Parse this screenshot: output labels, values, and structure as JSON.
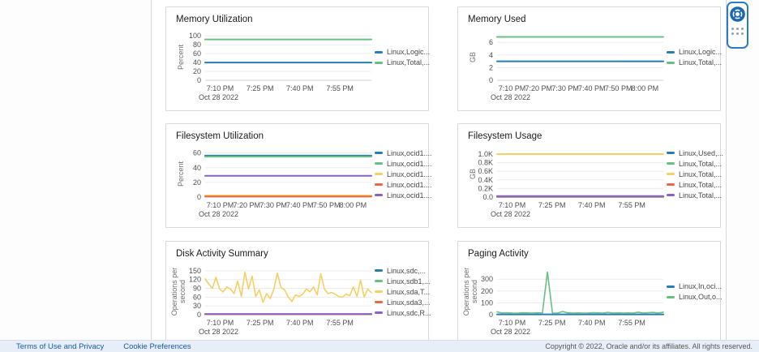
{
  "footer": {
    "terms_label": "Terms of Use and Privacy",
    "cookie_label": "Cookie Preferences",
    "copyright": "Copyright © 2022, Oracle and/or its affiliates. All rights reserved."
  },
  "help_widget": {
    "icons": {
      "help": "life-ring",
      "launcher": "dots-grid"
    }
  },
  "palette": {
    "blue": "#267db3",
    "green": "#68c182",
    "yellow": "#f6cf65",
    "red": "#ed6647",
    "purple": "#8561c8"
  },
  "charts": [
    {
      "title": "Memory Utilization",
      "ylabel": [
        "Percent"
      ],
      "ymax": 104,
      "yticks": [
        {
          "v": 0,
          "label": "0"
        },
        {
          "v": 20,
          "label": "20"
        },
        {
          "v": 40,
          "label": "40"
        },
        {
          "v": 60,
          "label": "60"
        },
        {
          "v": 80,
          "label": "80"
        },
        {
          "v": 100,
          "label": "100"
        }
      ],
      "xticks": [
        {
          "f": 0.09,
          "label": "7:10 PM"
        },
        {
          "f": 0.33,
          "label": "7:25 PM"
        },
        {
          "f": 0.57,
          "label": "7:40 PM"
        },
        {
          "f": 0.81,
          "label": "7:55 PM"
        }
      ],
      "xdate": "Oct 28 2022",
      "series": [
        {
          "label": "Linux,Logic...",
          "color": "#267db3",
          "value": 40
        },
        {
          "label": "Linux,Total,...",
          "color": "#68c182",
          "value": 92
        }
      ]
    },
    {
      "title": "Memory Used",
      "ylabel": [
        "GB"
      ],
      "ymax": 7.3,
      "yticks": [
        {
          "v": 0,
          "label": "0"
        },
        {
          "v": 2,
          "label": "2"
        },
        {
          "v": 4,
          "label": "4"
        },
        {
          "v": 6,
          "label": "6"
        }
      ],
      "xticks": [
        {
          "f": 0.09,
          "label": "7:10 PM"
        },
        {
          "f": 0.25,
          "label": "7:20 PM"
        },
        {
          "f": 0.41,
          "label": "7:30 PM"
        },
        {
          "f": 0.57,
          "label": "7:40 PM"
        },
        {
          "f": 0.73,
          "label": "7:50 PM"
        },
        {
          "f": 0.89,
          "label": "8:00 PM"
        }
      ],
      "xdate": "Oct 28 2022",
      "series": [
        {
          "label": "Linux,Logic...",
          "color": "#267db3",
          "value": 3.0
        },
        {
          "label": "Linux,Total,...",
          "color": "#68c182",
          "value": 6.85
        }
      ]
    },
    {
      "title": "Filesystem Utilization",
      "ylabel": [
        "Percent"
      ],
      "ymax": 63,
      "yticks": [
        {
          "v": 0,
          "label": "0"
        },
        {
          "v": 20,
          "label": "20"
        },
        {
          "v": 40,
          "label": "40"
        },
        {
          "v": 60,
          "label": "60"
        }
      ],
      "xticks": [
        {
          "f": 0.09,
          "label": "7:10 PM"
        },
        {
          "f": 0.25,
          "label": "7:20 PM"
        },
        {
          "f": 0.41,
          "label": "7:30 PM"
        },
        {
          "f": 0.57,
          "label": "7:40 PM"
        },
        {
          "f": 0.73,
          "label": "7:50 PM"
        },
        {
          "f": 0.89,
          "label": "8:00 PM"
        }
      ],
      "xdate": "Oct 28 2022",
      "series": [
        {
          "label": "Linux,ocid1....",
          "color": "#267db3",
          "value": 56.5
        },
        {
          "label": "Linux,ocid1....",
          "color": "#68c182",
          "value": 55.2
        },
        {
          "label": "Linux,ocid1....",
          "color": "#f6cf65",
          "value": 2.2
        },
        {
          "label": "Linux,ocid1....",
          "color": "#ed6647",
          "value": 0.8
        },
        {
          "label": "Linux,ocid1....",
          "color": "#8561c8",
          "value": 29
        }
      ]
    },
    {
      "title": "Filesystem Usage",
      "ylabel": [
        "GB"
      ],
      "ymax": 1075,
      "yticks": [
        {
          "v": 0,
          "label": "0.0"
        },
        {
          "v": 200,
          "label": "0.2K"
        },
        {
          "v": 400,
          "label": "0.4K"
        },
        {
          "v": 600,
          "label": "0.6K"
        },
        {
          "v": 800,
          "label": "0.8K"
        },
        {
          "v": 1000,
          "label": "1.0K"
        }
      ],
      "xticks": [
        {
          "f": 0.09,
          "label": "7:10 PM"
        },
        {
          "f": 0.33,
          "label": "7:25 PM"
        },
        {
          "f": 0.57,
          "label": "7:40 PM"
        },
        {
          "f": 0.81,
          "label": "7:55 PM"
        }
      ],
      "xdate": "Oct 28 2022",
      "series": [
        {
          "label": "Linux,Used,...",
          "color": "#267db3",
          "value": 4
        },
        {
          "label": "Linux,Total,...",
          "color": "#68c182",
          "value": 8
        },
        {
          "label": "Linux,Total,...",
          "color": "#f6cf65",
          "value": 1000
        },
        {
          "label": "Linux,Total,...",
          "color": "#ed6647",
          "value": 14
        },
        {
          "label": "Linux,Total,...",
          "color": "#8561c8",
          "value": 22
        }
      ]
    },
    {
      "title": "Disk Activity Summary",
      "ylabel": [
        "Operations per",
        "second"
      ],
      "ymax": 158,
      "yticks": [
        {
          "v": 0,
          "label": "0"
        },
        {
          "v": 30,
          "label": "30"
        },
        {
          "v": 60,
          "label": "60"
        },
        {
          "v": 90,
          "label": "90"
        },
        {
          "v": 120,
          "label": "120"
        },
        {
          "v": 150,
          "label": "150"
        }
      ],
      "xticks": [
        {
          "f": 0.09,
          "label": "7:10 PM"
        },
        {
          "f": 0.33,
          "label": "7:25 PM"
        },
        {
          "f": 0.57,
          "label": "7:40 PM"
        },
        {
          "f": 0.81,
          "label": "7:55 PM"
        }
      ],
      "xdate": "Oct 28 2022",
      "series": [
        {
          "label": "Linux,sdc,...",
          "color": "#267db3",
          "value": 1.5
        },
        {
          "label": "Linux,sdb1,...",
          "color": "#68c182",
          "value": 1.5
        },
        {
          "label": "Linux,sda,T...",
          "color": "#f6cf65",
          "values": [
            122,
            105,
            90,
            128,
            88,
            78,
            95,
            88,
            72,
            115,
            62,
            145,
            88,
            132,
            62,
            85,
            42,
            72,
            55,
            88,
            142,
            92,
            85,
            60,
            45,
            68,
            62,
            70,
            88,
            78,
            95,
            68,
            140,
            88,
            72,
            76,
            70,
            62,
            60,
            70,
            65,
            95,
            62,
            118,
            60,
            88,
            75
          ]
        },
        {
          "label": "Linux,sda3,...",
          "color": "#ed6647",
          "value": 1.5
        },
        {
          "label": "Linux,sdc,R...",
          "color": "#8561c8",
          "value": 2.5
        }
      ]
    },
    {
      "title": "Paging Activity",
      "ylabel": [
        "Operations per",
        "second"
      ],
      "ymax": 390,
      "yticks": [
        {
          "v": 0,
          "label": "0"
        },
        {
          "v": 100,
          "label": "100"
        },
        {
          "v": 200,
          "label": "200"
        },
        {
          "v": 300,
          "label": "300"
        }
      ],
      "xticks": [
        {
          "f": 0.09,
          "label": "7:10 PM"
        },
        {
          "f": 0.33,
          "label": "7:25 PM"
        },
        {
          "f": 0.57,
          "label": "7:40 PM"
        },
        {
          "f": 0.81,
          "label": "7:55 PM"
        }
      ],
      "xdate": "Oct 28 2022",
      "series": [
        {
          "label": "Linux,In,oci...",
          "color": "#267db3",
          "value": 3
        },
        {
          "label": "Linux,Out,o...",
          "color": "#68c182",
          "values": [
            24,
            14,
            17,
            14,
            12,
            16,
            15,
            13,
            16,
            14,
            360,
            13,
            14,
            27,
            16,
            14,
            15,
            13,
            14,
            17,
            15,
            14,
            19,
            14,
            16,
            13,
            15,
            14,
            21,
            14,
            17,
            19,
            14,
            22
          ]
        }
      ]
    }
  ]
}
